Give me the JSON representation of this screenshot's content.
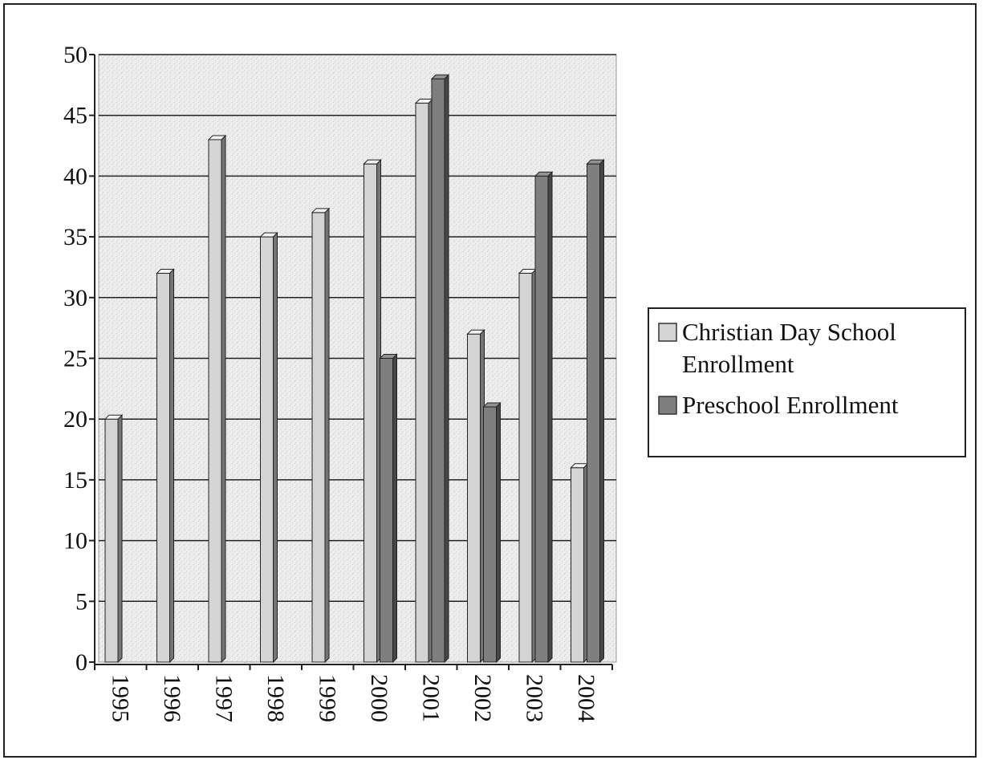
{
  "chart_data": {
    "type": "bar",
    "title": "",
    "xlabel": "",
    "ylabel": "",
    "ylim": [
      0,
      50
    ],
    "yticks": [
      0,
      5,
      10,
      15,
      20,
      25,
      30,
      35,
      40,
      45,
      50
    ],
    "grid": true,
    "legend_position": "right",
    "categories": [
      "1995",
      "1996",
      "1997",
      "1998",
      "1999",
      "2000",
      "2001",
      "2002",
      "2003",
      "2004"
    ],
    "series": [
      {
        "name": "Christian Day School Enrollment",
        "legend_lines": [
          "Christian Day School",
          "Enrollment"
        ],
        "color": "#d4d4d4",
        "values": [
          20,
          32,
          43,
          35,
          37,
          41,
          46,
          27,
          32,
          16
        ]
      },
      {
        "name": "Preschool Enrollment",
        "legend_lines": [
          "Preschool Enrollment"
        ],
        "color": "#7f7f7f",
        "values": [
          null,
          null,
          null,
          null,
          null,
          25,
          48,
          21,
          40,
          41
        ]
      }
    ]
  }
}
